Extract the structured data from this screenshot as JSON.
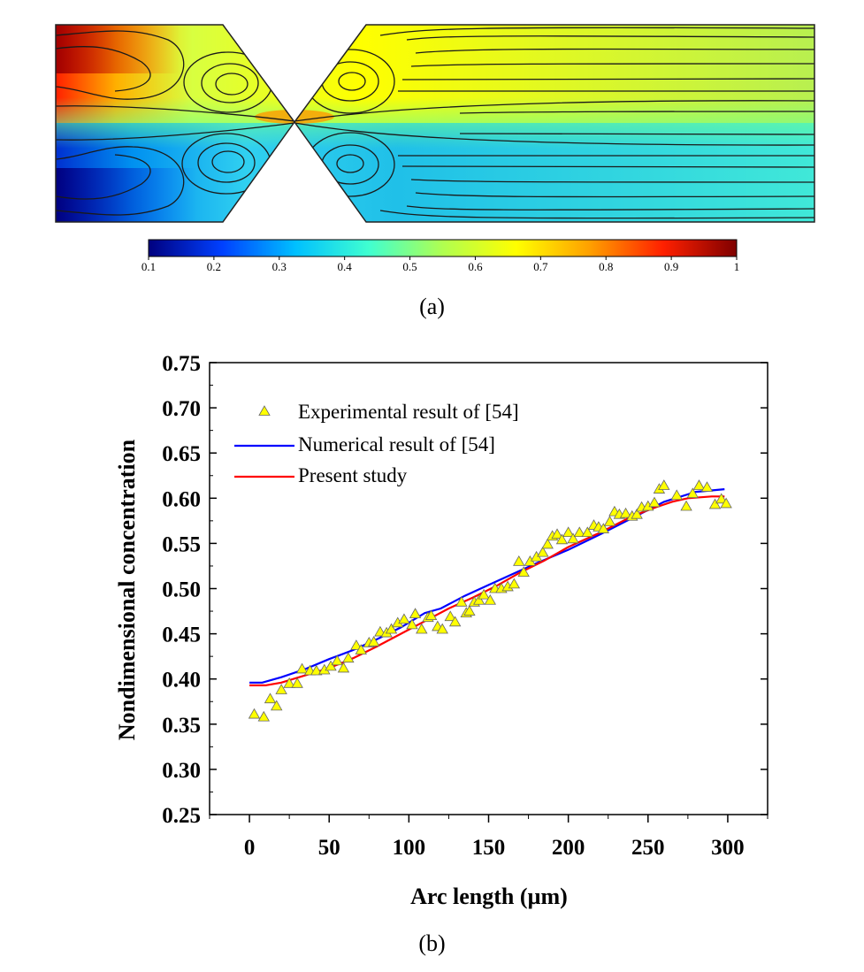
{
  "panel_a": {
    "label": "(a)",
    "colorbar": {
      "ticks": [
        "0.1",
        "0.2",
        "0.3",
        "0.4",
        "0.5",
        "0.6",
        "0.7",
        "0.8",
        "0.9",
        "1"
      ],
      "colormap": [
        "#00007f",
        "#0040ff",
        "#00c0ff",
        "#40ffd0",
        "#b0ff50",
        "#ffff00",
        "#ffa000",
        "#ff2000",
        "#7f0000"
      ]
    }
  },
  "panel_b": {
    "label": "(b)"
  },
  "chart_data": {
    "type": "scatter",
    "title": "",
    "xlabel": "Arc length (µm)",
    "ylabel": "Nondimensional concentration",
    "xlim": [
      -25,
      325
    ],
    "ylim": [
      0.25,
      0.75
    ],
    "xticks": [
      0,
      50,
      100,
      150,
      200,
      250,
      300
    ],
    "yticks": [
      0.25,
      0.3,
      0.35,
      0.4,
      0.45,
      0.5,
      0.55,
      0.6,
      0.65,
      0.7,
      0.75
    ],
    "ytick_labels": [
      "0.25",
      "0.30",
      "0.35",
      "0.40",
      "0.45",
      "0.50",
      "0.55",
      "0.60",
      "0.65",
      "0.70",
      "0.75"
    ],
    "grid": false,
    "legend_position": "top-left",
    "series": [
      {
        "name": "Experimental result of [54]",
        "kind": "markers",
        "marker": "triangle",
        "color": "#ffff00",
        "edge_color": "#666666",
        "points": [
          [
            3,
            0.361
          ],
          [
            9,
            0.358
          ],
          [
            13,
            0.378
          ],
          [
            17,
            0.37
          ],
          [
            20,
            0.388
          ],
          [
            25,
            0.395
          ],
          [
            30,
            0.395
          ],
          [
            33,
            0.411
          ],
          [
            38,
            0.409
          ],
          [
            42,
            0.409
          ],
          [
            47,
            0.41
          ],
          [
            51,
            0.414
          ],
          [
            55,
            0.42
          ],
          [
            59,
            0.412
          ],
          [
            62,
            0.423
          ],
          [
            67,
            0.437
          ],
          [
            70,
            0.432
          ],
          [
            75,
            0.44
          ],
          [
            78,
            0.441
          ],
          [
            82,
            0.452
          ],
          [
            86,
            0.451
          ],
          [
            89,
            0.455
          ],
          [
            93,
            0.462
          ],
          [
            97,
            0.466
          ],
          [
            102,
            0.46
          ],
          [
            104,
            0.472
          ],
          [
            108,
            0.455
          ],
          [
            112,
            0.468
          ],
          [
            114,
            0.47
          ],
          [
            118,
            0.458
          ],
          [
            121,
            0.455
          ],
          [
            126,
            0.469
          ],
          [
            129,
            0.463
          ],
          [
            133,
            0.485
          ],
          [
            136,
            0.473
          ],
          [
            138,
            0.475
          ],
          [
            141,
            0.485
          ],
          [
            144,
            0.487
          ],
          [
            147,
            0.493
          ],
          [
            151,
            0.487
          ],
          [
            154,
            0.5
          ],
          [
            158,
            0.5
          ],
          [
            162,
            0.502
          ],
          [
            166,
            0.505
          ],
          [
            169,
            0.53
          ],
          [
            172,
            0.518
          ],
          [
            176,
            0.53
          ],
          [
            180,
            0.535
          ],
          [
            184,
            0.54
          ],
          [
            187,
            0.549
          ],
          [
            190,
            0.558
          ],
          [
            193,
            0.56
          ],
          [
            196,
            0.554
          ],
          [
            200,
            0.562
          ],
          [
            203,
            0.555
          ],
          [
            207,
            0.562
          ],
          [
            212,
            0.562
          ],
          [
            216,
            0.57
          ],
          [
            219,
            0.568
          ],
          [
            222,
            0.566
          ],
          [
            226,
            0.574
          ],
          [
            229,
            0.585
          ],
          [
            232,
            0.582
          ],
          [
            236,
            0.583
          ],
          [
            240,
            0.58
          ],
          [
            243,
            0.582
          ],
          [
            246,
            0.59
          ],
          [
            250,
            0.591
          ],
          [
            254,
            0.595
          ],
          [
            257,
            0.61
          ],
          [
            260,
            0.614
          ],
          [
            268,
            0.603
          ],
          [
            274,
            0.591
          ],
          [
            278,
            0.605
          ],
          [
            282,
            0.614
          ],
          [
            287,
            0.612
          ],
          [
            292,
            0.593
          ],
          [
            296,
            0.599
          ],
          [
            299,
            0.594
          ]
        ]
      },
      {
        "name": "Numerical result of [54]",
        "kind": "line",
        "color": "#0000ff",
        "points": [
          [
            0,
            0.396
          ],
          [
            8,
            0.396
          ],
          [
            20,
            0.402
          ],
          [
            35,
            0.411
          ],
          [
            50,
            0.422
          ],
          [
            65,
            0.432
          ],
          [
            80,
            0.444
          ],
          [
            95,
            0.457
          ],
          [
            110,
            0.473
          ],
          [
            120,
            0.478
          ],
          [
            135,
            0.492
          ],
          [
            150,
            0.504
          ],
          [
            165,
            0.516
          ],
          [
            180,
            0.528
          ],
          [
            200,
            0.543
          ],
          [
            220,
            0.56
          ],
          [
            240,
            0.578
          ],
          [
            260,
            0.596
          ],
          [
            280,
            0.607
          ],
          [
            298,
            0.61
          ]
        ]
      },
      {
        "name": "Present study",
        "kind": "line",
        "color": "#ff0000",
        "points": [
          [
            0,
            0.393
          ],
          [
            10,
            0.393
          ],
          [
            20,
            0.396
          ],
          [
            35,
            0.404
          ],
          [
            50,
            0.412
          ],
          [
            65,
            0.423
          ],
          [
            80,
            0.436
          ],
          [
            95,
            0.45
          ],
          [
            110,
            0.464
          ],
          [
            125,
            0.478
          ],
          [
            140,
            0.49
          ],
          [
            155,
            0.503
          ],
          [
            170,
            0.518
          ],
          [
            185,
            0.531
          ],
          [
            200,
            0.546
          ],
          [
            220,
            0.562
          ],
          [
            240,
            0.58
          ],
          [
            255,
            0.59
          ],
          [
            265,
            0.596
          ],
          [
            275,
            0.6
          ],
          [
            290,
            0.602
          ],
          [
            298,
            0.602
          ]
        ]
      }
    ]
  }
}
